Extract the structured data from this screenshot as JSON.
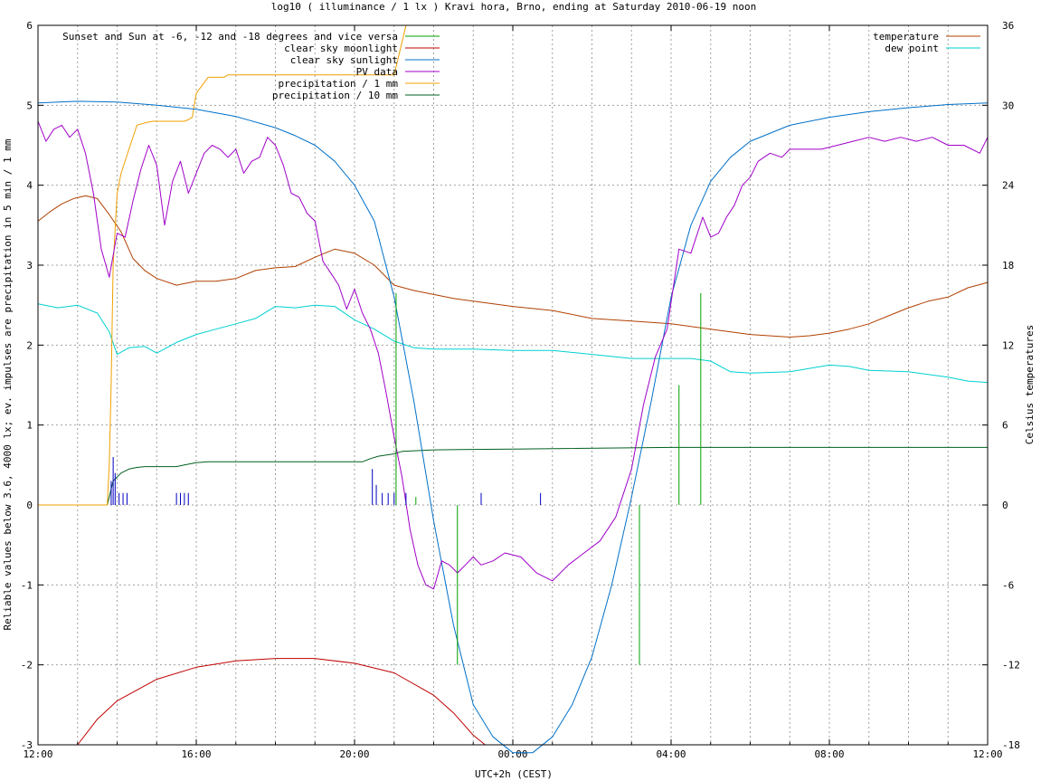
{
  "chart_data": {
    "type": "line",
    "title": "log10 ( illuminance / 1 lx ) Kravi hora, Brno, ending at Saturday 2010-06-19 noon",
    "xlabel": "UTC+2h (CEST)",
    "ylabel": "Reliable values below 3.6, 4000 lx; ev. impulses are precipitation in 5 min / 1 mm",
    "y2label": "Celsius temperatures",
    "x_unit": "hours from 12:00 (UTC+2h)",
    "xlim": [
      0,
      24
    ],
    "ylim": [
      -3,
      6
    ],
    "y2lim": [
      -18,
      36
    ],
    "grid": true,
    "x_ticks": [
      {
        "x": 0,
        "label": "12:00"
      },
      {
        "x": 4,
        "label": "16:00"
      },
      {
        "x": 8,
        "label": "20:00"
      },
      {
        "x": 12,
        "label": "00:00"
      },
      {
        "x": 16,
        "label": "04:00"
      },
      {
        "x": 20,
        "label": "08:00"
      },
      {
        "x": 24,
        "label": "12:00"
      }
    ],
    "y_ticks": [
      -3,
      -2,
      -1,
      0,
      1,
      2,
      3,
      4,
      5,
      6
    ],
    "y2_ticks": [
      -18,
      -12,
      -6,
      0,
      6,
      12,
      18,
      24,
      30,
      36
    ],
    "legend_left": {
      "placement": "top-left",
      "entries": [
        {
          "name": "Sunset and Sun at -6, -12 and -18 degrees and vice versa",
          "color": "#00a000"
        },
        {
          "name": "clear sky moonlight",
          "color": "#c00000"
        },
        {
          "name": "clear sky sunlight",
          "color": "#0070c8"
        },
        {
          "name": "PV data",
          "color": "#a000c8"
        },
        {
          "name": "precipitation / 1 mm",
          "color": "#f0a000"
        },
        {
          "name": "precipitation / 10 mm",
          "color": "#006020"
        }
      ]
    },
    "legend_right": {
      "placement": "top-right",
      "entries": [
        {
          "name": "temperature",
          "color": "#b04000"
        },
        {
          "name": "dew point",
          "color": "#00d0d0"
        }
      ]
    },
    "series": [
      {
        "name": "clear sky sunlight",
        "color": "#0070c8",
        "axis": "y1",
        "x": [
          0,
          1,
          2,
          3,
          4,
          5,
          6,
          6.5,
          7,
          7.5,
          8,
          8.5,
          9,
          9.5,
          10,
          10.5,
          11,
          11.5,
          12,
          12.5,
          13,
          13.5,
          14,
          14.5,
          15,
          15.5,
          16,
          16.5,
          17,
          17.5,
          18,
          19,
          20,
          21,
          22,
          23,
          24
        ],
        "y": [
          5.03,
          5.05,
          5.04,
          5.0,
          4.95,
          4.86,
          4.72,
          4.62,
          4.5,
          4.3,
          4.0,
          3.55,
          2.6,
          1.3,
          -0.2,
          -1.5,
          -2.5,
          -2.9,
          -3.1,
          -3.1,
          -2.9,
          -2.5,
          -1.9,
          -1.0,
          0.1,
          1.3,
          2.6,
          3.5,
          4.05,
          4.35,
          4.55,
          4.75,
          4.85,
          4.92,
          4.97,
          5.01,
          5.03
        ]
      },
      {
        "name": "clear sky moonlight",
        "color": "#c00000",
        "axis": "y1",
        "x": [
          1.0,
          1.5,
          2,
          3,
          4,
          5,
          6,
          7,
          8,
          9,
          10,
          10.5,
          11,
          11.3
        ],
        "y": [
          -3.0,
          -2.68,
          -2.45,
          -2.18,
          -2.03,
          -1.95,
          -1.92,
          -1.92,
          -1.98,
          -2.1,
          -2.38,
          -2.6,
          -2.88,
          -3.0
        ]
      },
      {
        "name": "PV data",
        "color": "#a000c8",
        "axis": "y1",
        "x": [
          0,
          0.2,
          0.4,
          0.6,
          0.8,
          1.0,
          1.2,
          1.4,
          1.6,
          1.8,
          2.0,
          2.2,
          2.4,
          2.6,
          2.8,
          3.0,
          3.2,
          3.4,
          3.6,
          3.8,
          4.0,
          4.2,
          4.4,
          4.6,
          4.8,
          5.0,
          5.2,
          5.4,
          5.6,
          5.8,
          6.0,
          6.2,
          6.4,
          6.6,
          6.8,
          7.0,
          7.2,
          7.4,
          7.6,
          7.8,
          8.0,
          8.2,
          8.4,
          8.6,
          8.8,
          9.0,
          9.2,
          9.4,
          9.6,
          9.8,
          10.0,
          10.2,
          10.4,
          10.6,
          10.8,
          11.0,
          11.2,
          11.5,
          11.8,
          12.2,
          12.6,
          13.0,
          13.4,
          13.8,
          14.2,
          14.6,
          15.0,
          15.3,
          15.6,
          15.9,
          16.2,
          16.5,
          16.8,
          17.0,
          17.2,
          17.4,
          17.6,
          17.8,
          18.0,
          18.2,
          18.5,
          18.8,
          19.0,
          19.4,
          19.8,
          20.2,
          20.6,
          21.0,
          21.4,
          21.8,
          22.2,
          22.6,
          23.0,
          23.4,
          23.8,
          24.0
        ],
        "y": [
          4.8,
          4.55,
          4.7,
          4.75,
          4.6,
          4.7,
          4.4,
          3.9,
          3.2,
          2.85,
          3.4,
          3.35,
          3.8,
          4.2,
          4.5,
          4.25,
          3.5,
          4.05,
          4.3,
          3.9,
          4.15,
          4.4,
          4.5,
          4.45,
          4.35,
          4.45,
          4.15,
          4.3,
          4.35,
          4.6,
          4.5,
          4.25,
          3.9,
          3.85,
          3.65,
          3.55,
          3.05,
          2.9,
          2.75,
          2.45,
          2.7,
          2.4,
          2.2,
          1.9,
          1.4,
          0.85,
          0.35,
          -0.3,
          -0.75,
          -1.0,
          -1.05,
          -0.7,
          -0.75,
          -0.85,
          -0.75,
          -0.65,
          -0.75,
          -0.7,
          -0.6,
          -0.65,
          -0.85,
          -0.95,
          -0.75,
          -0.6,
          -0.45,
          -0.15,
          0.45,
          1.25,
          1.85,
          2.2,
          3.2,
          3.15,
          3.6,
          3.35,
          3.4,
          3.6,
          3.75,
          4.0,
          4.1,
          4.3,
          4.4,
          4.35,
          4.45,
          4.45,
          4.45,
          4.5,
          4.55,
          4.6,
          4.55,
          4.6,
          4.55,
          4.6,
          4.5,
          4.5,
          4.4,
          4.6
        ]
      },
      {
        "name": "precipitation / 1 mm",
        "color": "#f0a000",
        "axis": "y1",
        "x": [
          0,
          1.75,
          1.8,
          1.85,
          1.9,
          2.0,
          2.1,
          2.3,
          2.5,
          2.7,
          2.9,
          3.0,
          3.2,
          3.5,
          3.7,
          3.8,
          3.9,
          4.0,
          4.3,
          4.7,
          4.8,
          9.0,
          9.3
        ],
        "y": [
          0,
          0,
          0.5,
          1.5,
          3.0,
          3.9,
          4.15,
          4.45,
          4.75,
          4.78,
          4.8,
          4.8,
          4.8,
          4.8,
          4.8,
          4.82,
          4.85,
          5.15,
          5.35,
          5.35,
          5.38,
          5.38,
          6.0
        ]
      },
      {
        "name": "precipitation / 10 mm",
        "color": "#006020",
        "axis": "y1",
        "x": [
          0,
          1.75,
          1.9,
          2.1,
          2.3,
          2.5,
          2.7,
          3.5,
          3.7,
          4.0,
          4.3,
          7.0,
          8.2,
          8.4,
          8.6,
          9.0,
          9.2,
          10.0,
          12.0,
          16.0,
          20.0,
          24.0
        ],
        "y": [
          0,
          0,
          0.3,
          0.4,
          0.45,
          0.47,
          0.48,
          0.48,
          0.5,
          0.53,
          0.54,
          0.54,
          0.54,
          0.58,
          0.61,
          0.64,
          0.67,
          0.69,
          0.7,
          0.72,
          0.72,
          0.72
        ]
      },
      {
        "name": "temperature",
        "color": "#b04000",
        "axis": "y2",
        "x": [
          0,
          0.3,
          0.6,
          0.9,
          1.2,
          1.5,
          1.8,
          2.1,
          2.4,
          2.7,
          3.0,
          3.5,
          4.0,
          4.5,
          5.0,
          5.5,
          6.0,
          6.5,
          7.0,
          7.5,
          8.0,
          8.5,
          9.0,
          9.5,
          10.0,
          10.5,
          11.0,
          12.0,
          13.0,
          14.0,
          15.0,
          16.0,
          17.0,
          18.0,
          19.0,
          19.5,
          20.0,
          20.5,
          21.0,
          21.5,
          22.0,
          22.5,
          23.0,
          23.5,
          24.0
        ],
        "y": [
          21.3,
          22.0,
          22.6,
          23.0,
          23.2,
          23.0,
          21.8,
          20.5,
          18.5,
          17.6,
          17.0,
          16.5,
          16.8,
          16.8,
          17.0,
          17.6,
          17.8,
          17.9,
          18.6,
          19.2,
          18.9,
          18.0,
          16.5,
          16.1,
          15.8,
          15.5,
          15.3,
          14.9,
          14.6,
          14.0,
          13.8,
          13.6,
          13.2,
          12.8,
          12.6,
          12.7,
          12.9,
          13.2,
          13.6,
          14.2,
          14.8,
          15.3,
          15.6,
          16.3,
          16.7
        ]
      },
      {
        "name": "dew point",
        "color": "#00d0d0",
        "axis": "y2",
        "x": [
          0,
          0.5,
          1.0,
          1.5,
          1.8,
          2.0,
          2.3,
          2.7,
          3.0,
          3.5,
          4.0,
          4.5,
          5.0,
          5.5,
          6.0,
          6.5,
          7.0,
          7.5,
          8.0,
          8.5,
          9.0,
          9.5,
          10.0,
          11.0,
          12.0,
          13.0,
          14.0,
          15.0,
          16.0,
          16.5,
          17.0,
          17.5,
          18.0,
          19.0,
          20.0,
          20.5,
          21.0,
          22.0,
          23.0,
          23.5,
          24.0
        ],
        "y": [
          15.1,
          14.8,
          15.0,
          14.4,
          13.0,
          11.3,
          11.8,
          11.9,
          11.4,
          12.2,
          12.8,
          13.2,
          13.6,
          14.0,
          14.9,
          14.8,
          15.0,
          14.9,
          13.9,
          13.2,
          12.3,
          11.8,
          11.7,
          11.7,
          11.6,
          11.6,
          11.3,
          11.0,
          11.0,
          11.0,
          10.8,
          10.0,
          9.9,
          10.0,
          10.5,
          10.4,
          10.1,
          10.0,
          9.6,
          9.3,
          9.2
        ]
      }
    ],
    "sun_markers": {
      "color": "#00a000",
      "up": [
        {
          "x": 9.05,
          "y": 2.65
        },
        {
          "x": 9.55,
          "y": 0.1
        },
        {
          "x": 16.2,
          "y": 1.5
        },
        {
          "x": 16.75,
          "y": 2.65
        }
      ],
      "down": [
        {
          "x": 10.6,
          "y": -2.0
        },
        {
          "x": 15.2,
          "y": -2.0
        }
      ]
    },
    "rain_impulses": {
      "color": "#0000c0",
      "x": [
        1.85,
        1.9,
        1.95,
        2.05,
        2.15,
        2.25,
        3.5,
        3.6,
        3.7,
        3.8,
        8.45,
        8.55,
        8.7,
        8.85,
        9.0,
        9.3,
        11.2,
        12.7
      ],
      "y": [
        0.3,
        0.6,
        0.4,
        0.15,
        0.15,
        0.15,
        0.15,
        0.15,
        0.15,
        0.15,
        0.45,
        0.25,
        0.15,
        0.15,
        0.15,
        0.15,
        0.15,
        0.15
      ]
    }
  }
}
